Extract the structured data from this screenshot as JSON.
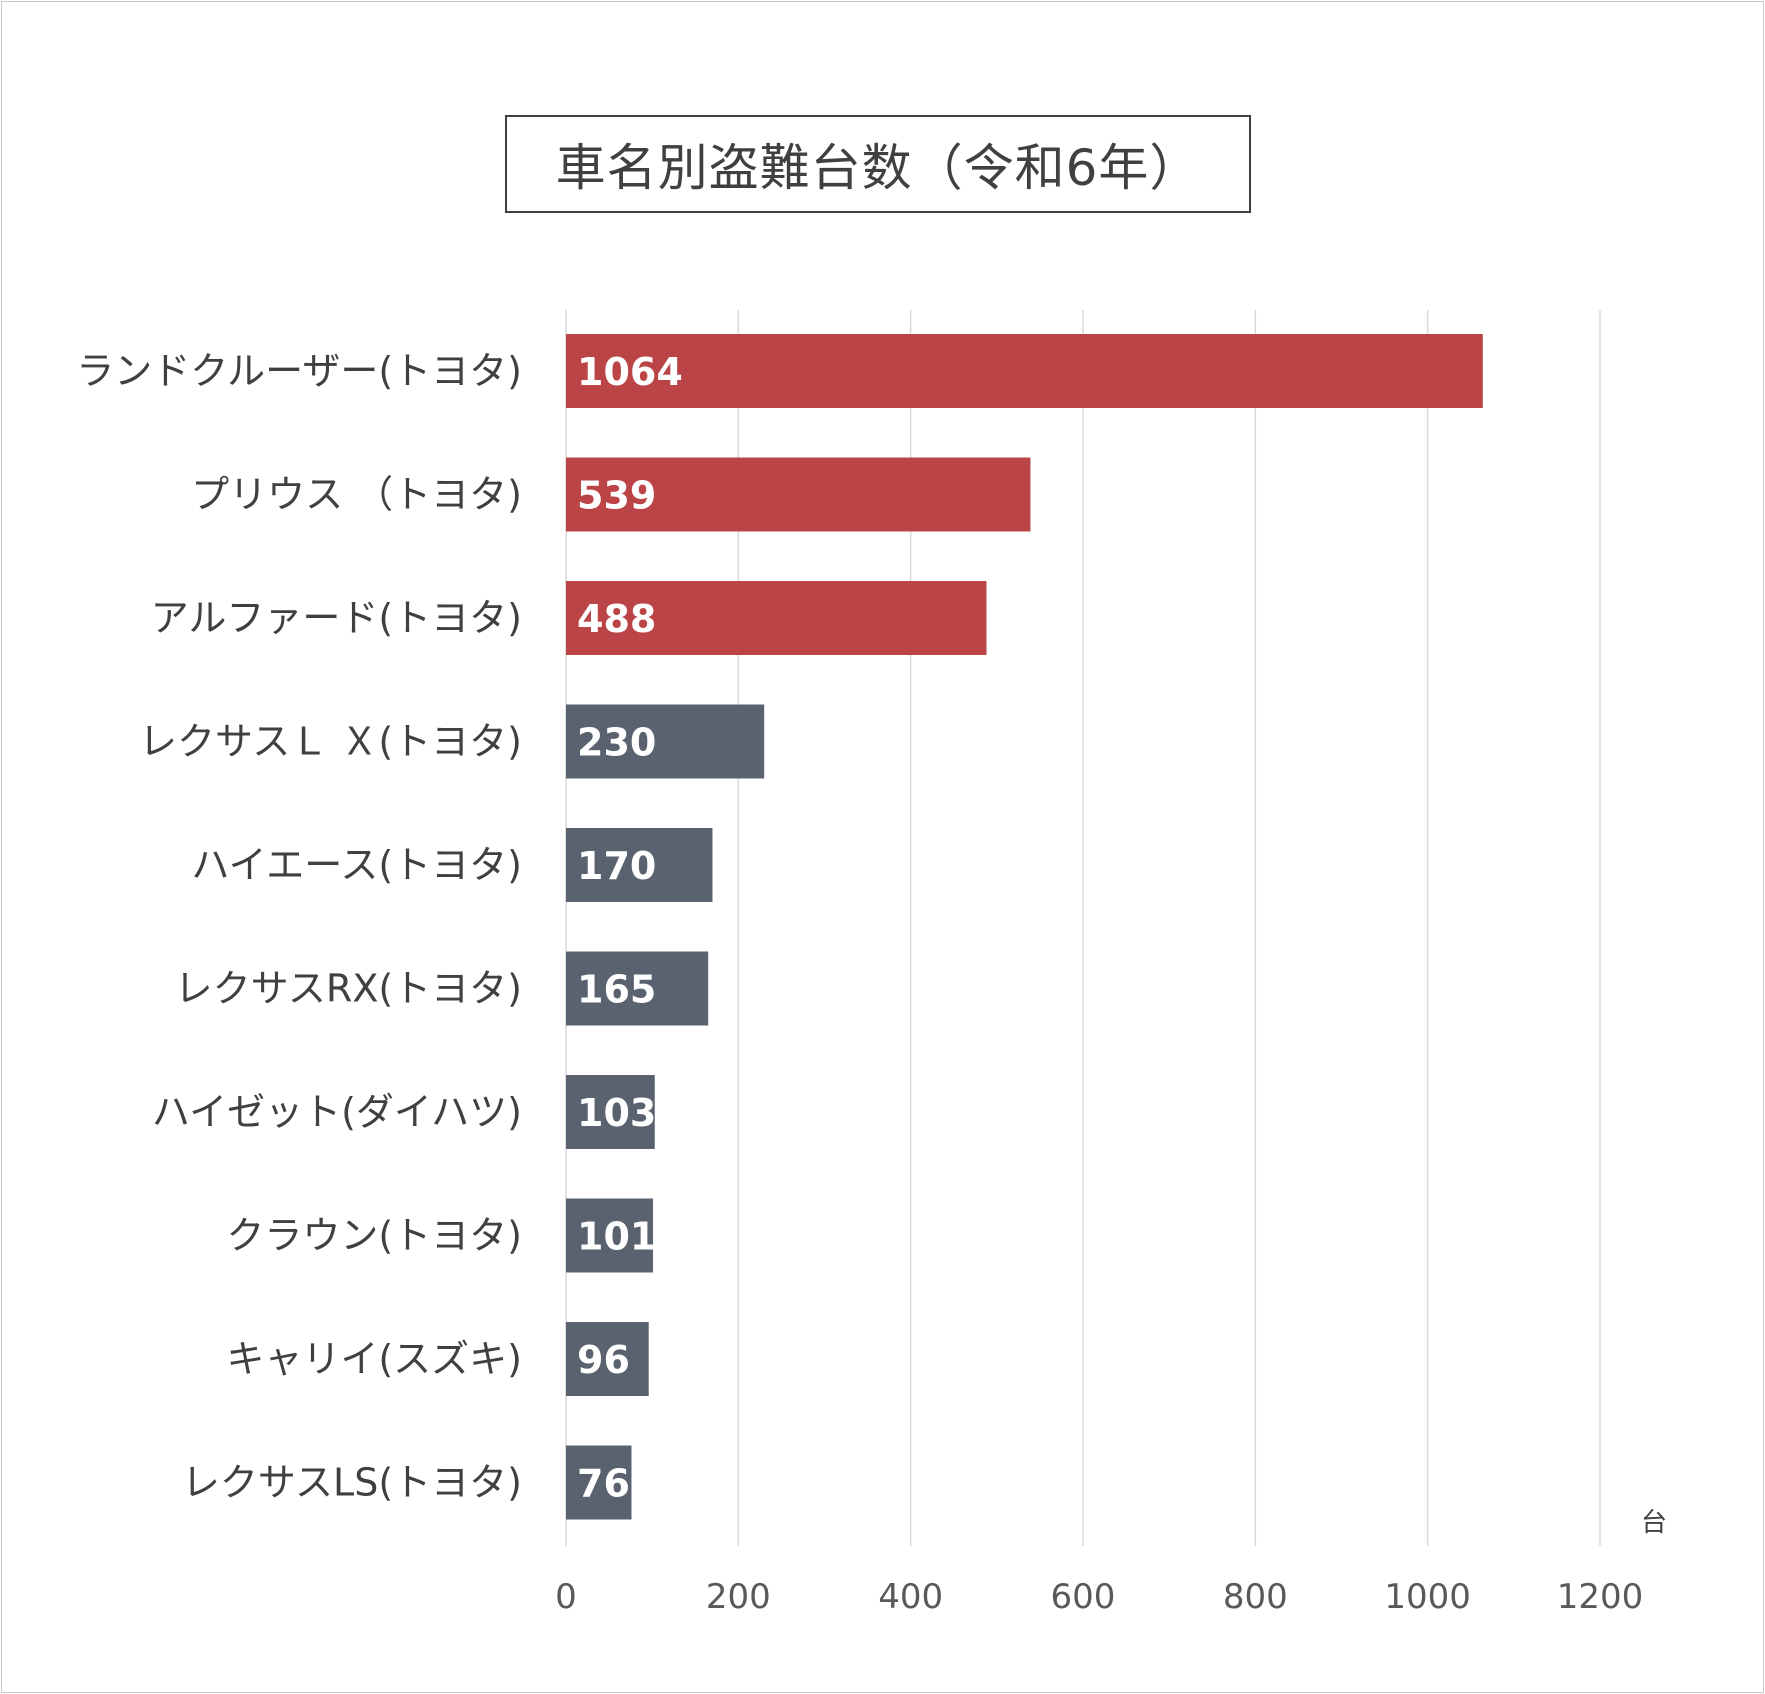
{
  "chart_data": {
    "type": "bar",
    "orientation": "horizontal",
    "title": "車名別盗難台数（令和6年）",
    "categories": [
      "ランドクルーザー(トヨタ)",
      "プリウス （トヨタ)",
      "アルファード(トヨタ)",
      "レクサスＬ Ｘ(トヨタ)",
      "ハイエース(トヨタ)",
      "レクサスRX(トヨタ)",
      "ハイゼット(ダイハツ)",
      "クラウン(トヨタ)",
      "キャリイ(スズキ)",
      "レクサスLS(トヨタ)"
    ],
    "values": [
      1064,
      539,
      488,
      230,
      170,
      165,
      103,
      101,
      96,
      76
    ],
    "value_labels": [
      "1064",
      "539",
      "488",
      "230",
      "170",
      "165",
      "103",
      "101",
      "96",
      "76"
    ],
    "bar_colors": [
      "#bb4446",
      "#bb4446",
      "#bb4446",
      "#5a6270",
      "#5a6270",
      "#5a6270",
      "#5a6270",
      "#5a6270",
      "#5a6270",
      "#5a6270"
    ],
    "xlim": [
      0,
      1200
    ],
    "xticks": [
      0,
      200,
      400,
      600,
      800,
      1000,
      1200
    ],
    "xtick_labels": [
      "0",
      "200",
      "400",
      "600",
      "800",
      "1000",
      "1200"
    ],
    "x_unit": "台",
    "grid": true,
    "legend": "none"
  },
  "colors": {
    "highlight_bar": "#bb4446",
    "normal_bar": "#5a6270",
    "gridline": "#d9d9d9",
    "text": "#404040"
  }
}
